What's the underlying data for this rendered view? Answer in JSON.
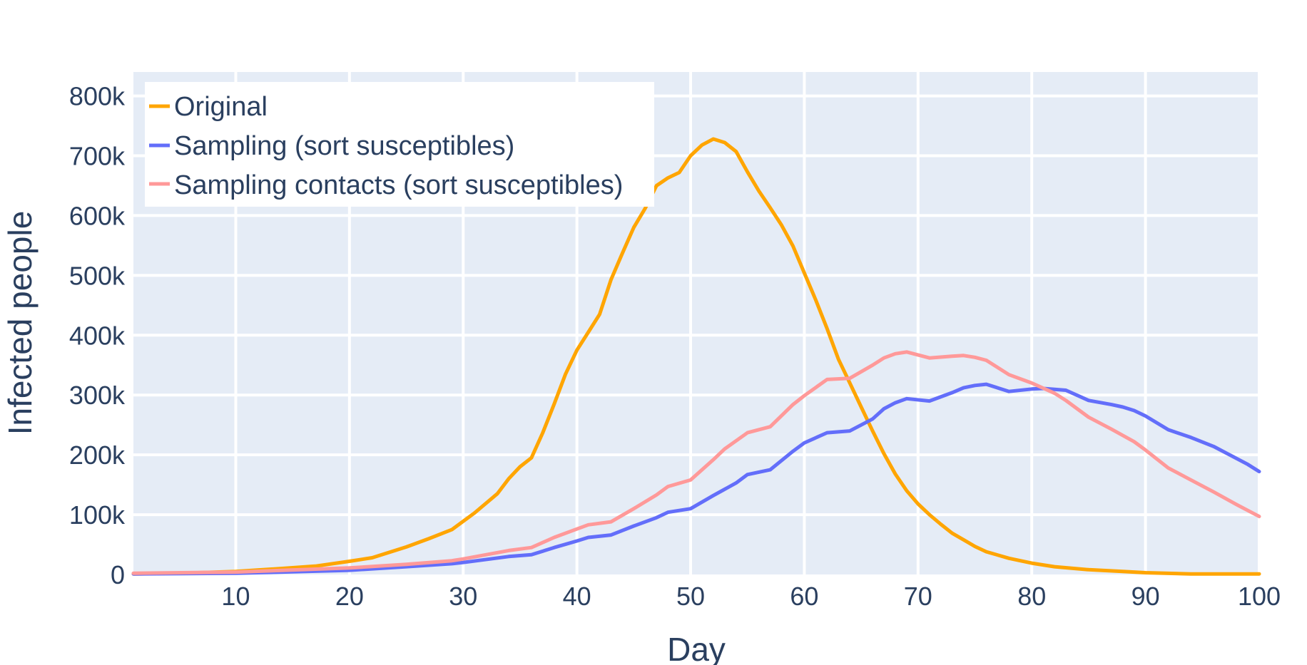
{
  "chart_data": {
    "type": "line",
    "xlabel": "Day",
    "ylabel": "Infected people",
    "xlim": [
      1,
      100
    ],
    "ylim": [
      0,
      840000
    ],
    "xticks": [
      10,
      20,
      30,
      40,
      50,
      60,
      70,
      80,
      90,
      100
    ],
    "xtick_labels": [
      "10",
      "20",
      "30",
      "40",
      "50",
      "60",
      "70",
      "80",
      "90",
      "100"
    ],
    "yticks": [
      0,
      100000,
      200000,
      300000,
      400000,
      500000,
      600000,
      700000,
      800000
    ],
    "ytick_labels": [
      "0",
      "100k",
      "200k",
      "300k",
      "400k",
      "500k",
      "600k",
      "700k",
      "800k"
    ],
    "grid": true,
    "legend_position": "top-left",
    "plot_background": "#e5ecf6",
    "series": [
      {
        "name": "Original",
        "color": "#ffa500",
        "x": [
          1,
          5,
          10,
          14,
          17,
          20,
          22,
          25,
          27,
          29,
          31,
          33,
          34,
          35,
          36,
          37,
          38,
          39,
          40,
          41,
          42,
          43,
          44,
          45,
          46,
          47,
          48,
          49,
          50,
          51,
          52,
          53,
          54,
          55,
          56,
          57,
          58,
          59,
          60,
          61,
          62,
          63,
          64,
          65,
          66,
          67,
          68,
          69,
          70,
          71,
          72,
          73,
          74,
          75,
          76,
          78,
          80,
          82,
          85,
          88,
          90,
          94,
          100
        ],
        "y": [
          1000,
          2000,
          5000,
          10000,
          14000,
          22000,
          28000,
          46000,
          60000,
          75000,
          103000,
          135000,
          160000,
          180000,
          195000,
          237000,
          285000,
          335000,
          375000,
          405000,
          435000,
          493000,
          537000,
          580000,
          612000,
          650000,
          663000,
          672000,
          700000,
          718000,
          728000,
          722000,
          707000,
          673000,
          641000,
          613000,
          584000,
          549000,
          504000,
          459000,
          411000,
          360000,
          320000,
          280000,
          240000,
          202000,
          168000,
          140000,
          118000,
          100000,
          84000,
          69000,
          58000,
          47000,
          38000,
          27000,
          19000,
          13000,
          8000,
          5000,
          3000,
          1000,
          1000
        ]
      },
      {
        "name": "Sampling (sort susceptibles)",
        "color": "#636efa",
        "x": [
          1,
          10,
          20,
          25,
          29,
          30,
          34,
          36,
          38,
          40,
          41,
          43,
          45,
          47,
          48,
          50,
          52,
          54,
          55,
          57,
          59,
          60,
          62,
          64,
          66,
          67,
          68,
          69,
          71,
          73,
          74,
          75,
          76,
          78,
          80,
          81,
          83,
          85,
          87,
          88,
          89,
          90,
          92,
          94,
          96,
          97,
          99,
          100
        ],
        "y": [
          1000,
          2000,
          7000,
          13000,
          18000,
          20000,
          30000,
          33000,
          45000,
          56000,
          62000,
          66000,
          81000,
          95000,
          104000,
          110000,
          132000,
          153000,
          167000,
          175000,
          206000,
          220000,
          237000,
          240000,
          260000,
          277000,
          287000,
          294000,
          290000,
          304000,
          312000,
          316000,
          318000,
          306000,
          310000,
          311000,
          308000,
          291000,
          284000,
          280000,
          274000,
          265000,
          242000,
          229000,
          214000,
          204000,
          184000,
          172000
        ]
      },
      {
        "name": "Sampling contacts (sort susceptibles)",
        "color": "#ff9999",
        "x": [
          1,
          10,
          20,
          25,
          29,
          30,
          34,
          36,
          38,
          40,
          41,
          43,
          45,
          47,
          48,
          50,
          52,
          53,
          55,
          57,
          59,
          60,
          62,
          64,
          66,
          67,
          68,
          69,
          71,
          73,
          74,
          75,
          76,
          78,
          80,
          82,
          83,
          85,
          87,
          89,
          90,
          92,
          94,
          96,
          98,
          100
        ],
        "y": [
          2000,
          4000,
          11000,
          17000,
          23000,
          26000,
          40000,
          45000,
          62000,
          76000,
          83000,
          88000,
          110000,
          133000,
          147000,
          158000,
          192000,
          210000,
          237000,
          247000,
          284000,
          299000,
          326000,
          328000,
          350000,
          362000,
          369000,
          372000,
          362000,
          365000,
          366000,
          363000,
          358000,
          334000,
          320000,
          303000,
          291000,
          263000,
          243000,
          222000,
          208000,
          178000,
          158000,
          138000,
          117000,
          97000
        ]
      }
    ]
  }
}
